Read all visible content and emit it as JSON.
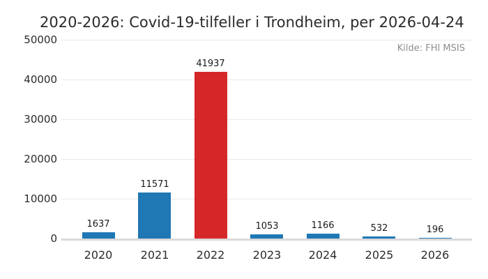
{
  "source_note": "Kilde: FHI MSIS",
  "chart_data": {
    "type": "bar",
    "title": "2020-2026: Covid-19-tilfeller i Trondheim, per 2026-04-24",
    "categories": [
      "2020",
      "2021",
      "2022",
      "2023",
      "2024",
      "2025",
      "2026"
    ],
    "values": [
      1637,
      11571,
      41937,
      1053,
      1166,
      532,
      196
    ],
    "value_labels": [
      "1637",
      "11571",
      "41937",
      "1053",
      "1166",
      "532",
      "196"
    ],
    "bar_colors": [
      "#1f77b4",
      "#1f77b4",
      "#d62728",
      "#1f77b4",
      "#1f77b4",
      "#1f77b4",
      "#1f77b4"
    ],
    "highlight_index": 2,
    "xlabel": "",
    "ylabel": "",
    "ylim": [
      0,
      50000
    ],
    "yticks": [
      0,
      10000,
      20000,
      30000,
      40000,
      50000
    ],
    "ytick_labels": [
      "0",
      "10000",
      "20000",
      "30000",
      "40000",
      "50000"
    ],
    "grid": "horizontal",
    "legend": "none",
    "annotations": [
      "Kilde: FHI MSIS"
    ],
    "colors": {
      "bar_primary": "#1f77b4",
      "bar_highlight": "#d62728",
      "gridline": "#e9e9e9",
      "axis_line": "#dadada",
      "title_text": "#2b2b2b",
      "tick_text": "#2b2b2b",
      "source_text": "#8e8e8e",
      "background": "#ffffff"
    }
  }
}
